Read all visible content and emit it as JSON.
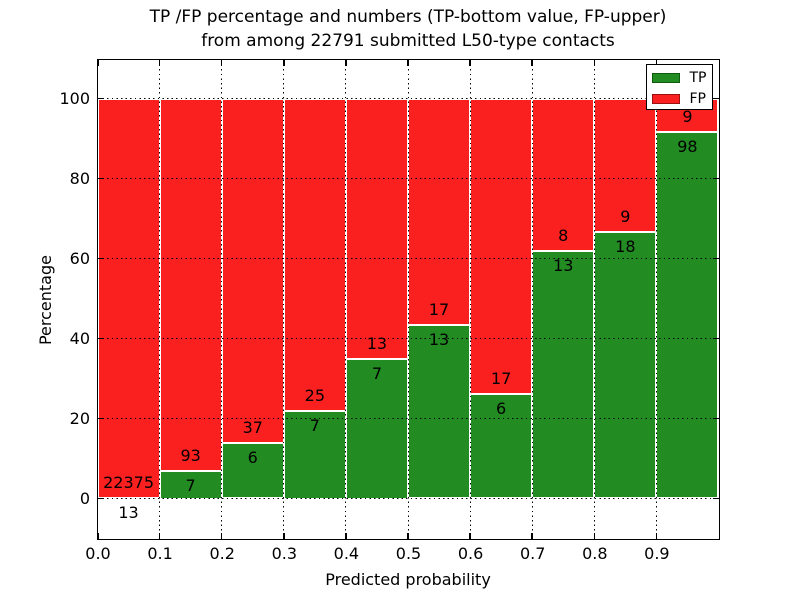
{
  "figure": {
    "background": "#ffffff"
  },
  "chart_data": {
    "type": "bar",
    "stacked": true,
    "title": "TP /FP percentage and numbers (TP-bottom value, FP-upper)\nfrom among 22791 submitted L50-type contacts",
    "title_line1": "TP /FP percentage and numbers (TP-bottom value, FP-upper)",
    "title_line2": "from among 22791 submitted L50-type contacts",
    "xlabel": "Predicted probability",
    "ylabel": "Percentage",
    "xlim": [
      0.0,
      1.0
    ],
    "ylim": [
      -10,
      110
    ],
    "x_tick_labels": [
      "0.0",
      "0.1",
      "0.2",
      "0.3",
      "0.4",
      "0.5",
      "0.6",
      "0.7",
      "0.8",
      "0.9"
    ],
    "y_tick_values": [
      0,
      20,
      40,
      60,
      80,
      100
    ],
    "grid": {
      "visible": true,
      "linestyle": "dotted",
      "color": "#000000"
    },
    "bar_edge_color": "#ffffff",
    "legend": {
      "position": "upper right",
      "entries": [
        {
          "label": "TP",
          "color": "#228b22"
        },
        {
          "label": "FP",
          "color": "#fb2020"
        }
      ]
    },
    "colors": {
      "tp": "#228b22",
      "fp": "#fb2020"
    },
    "bins": [
      {
        "range": [
          0.0,
          0.1
        ],
        "tp": 13,
        "fp": 22375,
        "tp_pct": 0.06,
        "fp_pct": 99.94
      },
      {
        "range": [
          0.1,
          0.2
        ],
        "tp": 7,
        "fp": 93,
        "tp_pct": 7.0,
        "fp_pct": 93.0
      },
      {
        "range": [
          0.2,
          0.3
        ],
        "tp": 6,
        "fp": 37,
        "tp_pct": 13.95,
        "fp_pct": 86.05
      },
      {
        "range": [
          0.3,
          0.4
        ],
        "tp": 7,
        "fp": 25,
        "tp_pct": 21.88,
        "fp_pct": 78.13
      },
      {
        "range": [
          0.4,
          0.5
        ],
        "tp": 7,
        "fp": 13,
        "tp_pct": 35.0,
        "fp_pct": 65.0
      },
      {
        "range": [
          0.5,
          0.6
        ],
        "tp": 13,
        "fp": 17,
        "tp_pct": 43.33,
        "fp_pct": 56.67
      },
      {
        "range": [
          0.6,
          0.7
        ],
        "tp": 6,
        "fp": 17,
        "tp_pct": 26.09,
        "fp_pct": 73.91
      },
      {
        "range": [
          0.7,
          0.8
        ],
        "tp": 13,
        "fp": 8,
        "tp_pct": 61.9,
        "fp_pct": 38.1
      },
      {
        "range": [
          0.8,
          0.9
        ],
        "tp": 18,
        "fp": 9,
        "tp_pct": 66.67,
        "fp_pct": 33.33
      },
      {
        "range": [
          0.9,
          1.0
        ],
        "tp": 98,
        "fp": 9,
        "tp_pct": 91.59,
        "fp_pct": 8.41
      }
    ]
  }
}
